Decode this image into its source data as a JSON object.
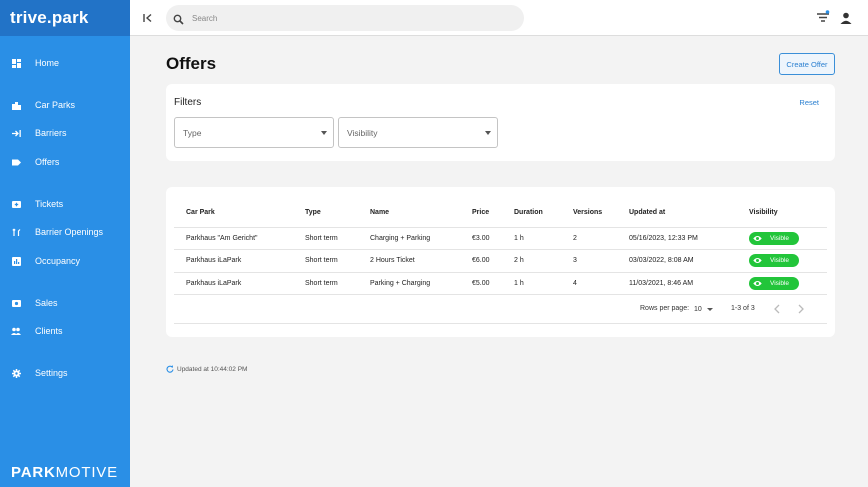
{
  "app": {
    "brand": "trive.park",
    "footer_bold": "PARK",
    "footer_light": "MOTIVE"
  },
  "sidebar": {
    "items": [
      {
        "label": "Home",
        "icon": "dashboard-icon"
      },
      {
        "label": "Car Parks",
        "icon": "car-parks-icon"
      },
      {
        "label": "Barriers",
        "icon": "barrier-arrow-icon"
      },
      {
        "label": "Offers",
        "icon": "tag-icon"
      },
      {
        "label": "Tickets",
        "icon": "ticket-icon"
      },
      {
        "label": "Barrier Openings",
        "icon": "barrier-opening-icon"
      },
      {
        "label": "Occupancy",
        "icon": "occupancy-chart-icon"
      },
      {
        "label": "Sales",
        "icon": "sales-icon"
      },
      {
        "label": "Clients",
        "icon": "clients-icon"
      },
      {
        "label": "Settings",
        "icon": "gear-icon"
      }
    ]
  },
  "topbar": {
    "search_placeholder": "Search"
  },
  "page": {
    "title": "Offers",
    "create_button": "Create Offer"
  },
  "filters": {
    "title": "Filters",
    "reset": "Reset",
    "type_label": "Type",
    "visibility_label": "Visibility"
  },
  "table": {
    "headers": [
      "Car Park",
      "Type",
      "Name",
      "Price",
      "Duration",
      "Versions",
      "Updated at",
      "Visibility"
    ],
    "rows": [
      {
        "car_park": "Parkhaus \"Am Gericht\"",
        "type": "Short term",
        "name": "Charging + Parking",
        "price": "€3.00",
        "duration": "1 h",
        "versions": "2",
        "updated_at": "05/16/2023, 12:33 PM",
        "visibility": "Visible"
      },
      {
        "car_park": "Parkhaus iLaPark",
        "type": "Short term",
        "name": "2 Hours Ticket",
        "price": "€6.00",
        "duration": "2 h",
        "versions": "3",
        "updated_at": "03/03/2022, 8:08 AM",
        "visibility": "Visible"
      },
      {
        "car_park": "Parkhaus iLaPark",
        "type": "Short term",
        "name": "Parking + Charging",
        "price": "€5.00",
        "duration": "1 h",
        "versions": "4",
        "updated_at": "11/03/2021, 8:46 AM",
        "visibility": "Visible"
      }
    ]
  },
  "pagination": {
    "rows_label": "Rows per page:",
    "rows_value": "10",
    "range": "1-3 of 3"
  },
  "status": {
    "updated": "Updated at 10:44:02 PM"
  },
  "colors": {
    "sidebar": "#2a8fe6",
    "brand_bar": "#2273c7",
    "accent": "#2a7fd0",
    "visible_badge": "#22c53a"
  }
}
